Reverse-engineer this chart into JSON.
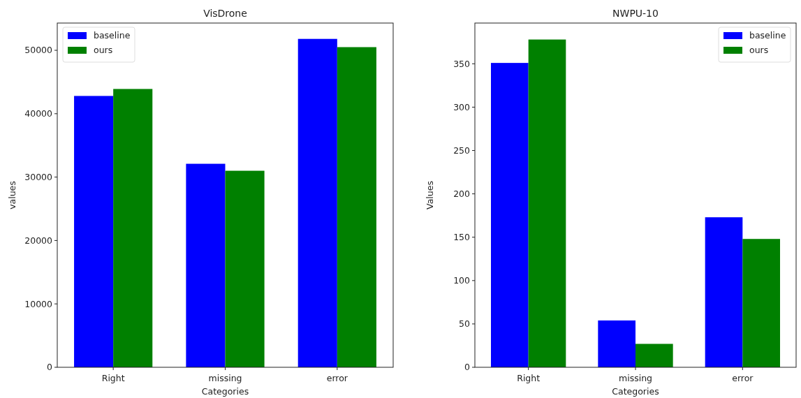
{
  "chart_data": [
    {
      "type": "bar",
      "title": "VisDrone",
      "xlabel": "Categories",
      "ylabel": "values",
      "categories": [
        "Right",
        "missing",
        "error"
      ],
      "series": [
        {
          "name": "baseline",
          "color": "#0000ff",
          "values": [
            42800,
            32100,
            51800
          ]
        },
        {
          "name": "ours",
          "color": "#008000",
          "values": [
            43900,
            31000,
            50500
          ]
        }
      ],
      "ylim": [
        0,
        54300
      ],
      "yticks": [
        0,
        10000,
        20000,
        30000,
        40000,
        50000
      ],
      "legend": "top left"
    },
    {
      "type": "bar",
      "title": "NWPU-10",
      "xlabel": "Categories",
      "ylabel": "Values",
      "categories": [
        "Right",
        "missing",
        "error"
      ],
      "series": [
        {
          "name": "baseline",
          "color": "#0000ff",
          "values": [
            351,
            54,
            173
          ]
        },
        {
          "name": "ours",
          "color": "#008000",
          "values": [
            378,
            27,
            148
          ]
        }
      ],
      "ylim": [
        0,
        397
      ],
      "yticks": [
        0,
        50,
        100,
        150,
        200,
        250,
        300,
        350
      ],
      "legend": "top right"
    }
  ]
}
